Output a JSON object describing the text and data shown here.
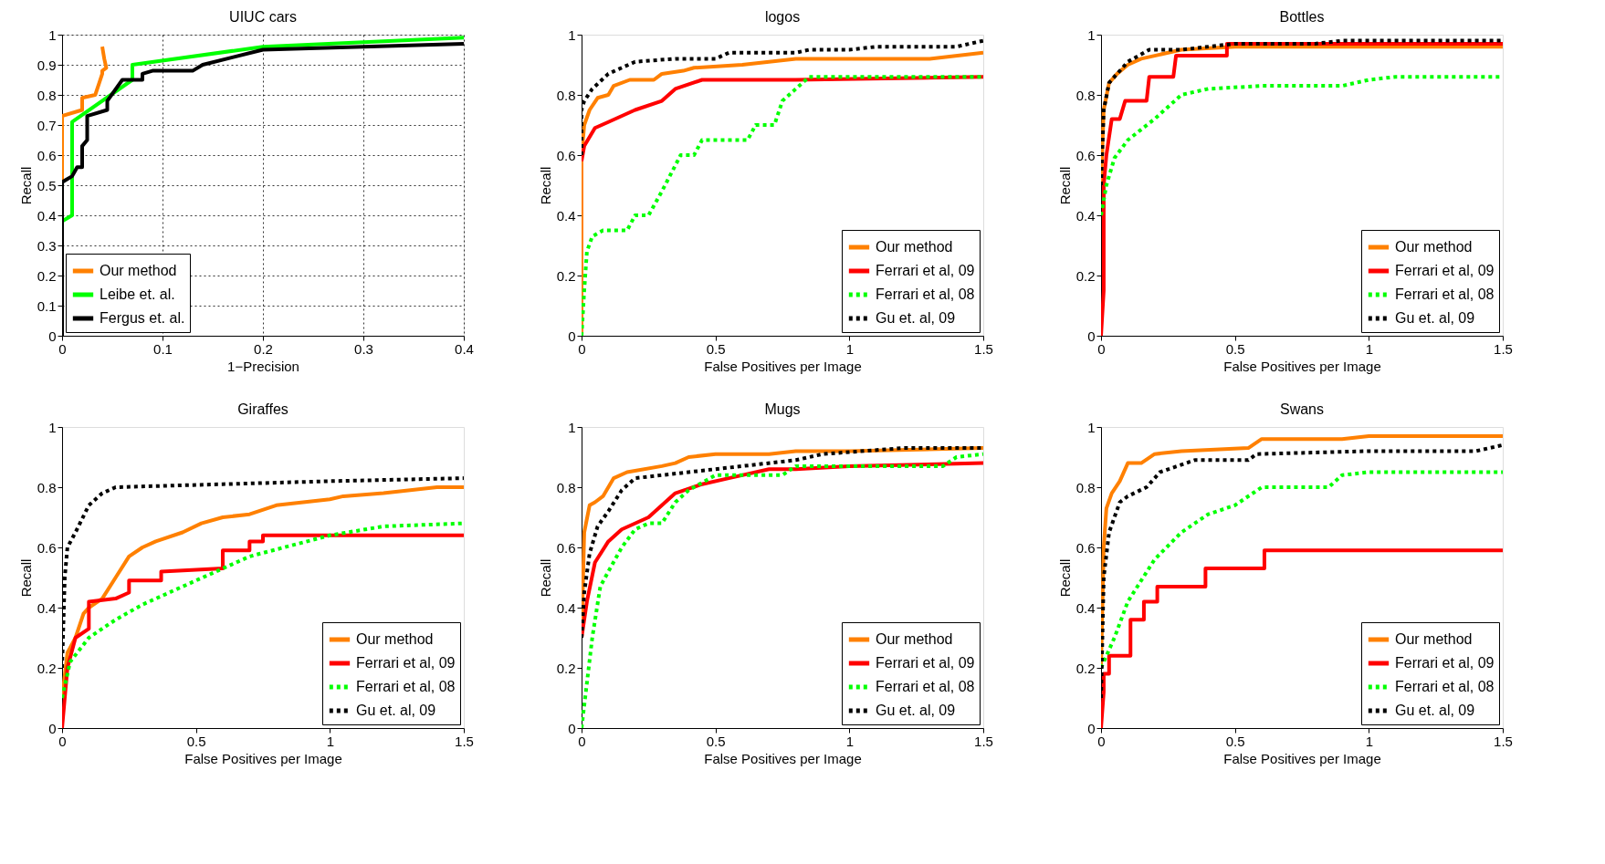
{
  "chart_data": [
    {
      "type": "line",
      "title": "UIUC cars",
      "xlabel": "1−Precision",
      "ylabel": "Recall",
      "xlim": [
        0,
        0.4
      ],
      "xticks": [
        0,
        0.1,
        0.2,
        0.3,
        0.4
      ],
      "ylim": [
        0,
        1
      ],
      "yticks": [
        0,
        0.1,
        0.2,
        0.3,
        0.4,
        0.5,
        0.6,
        0.7,
        0.8,
        0.9,
        1
      ],
      "grid": true,
      "legend": "bottom left",
      "marker": "none",
      "line_style": "solid",
      "series": [
        {
          "name": "Our method",
          "color": "#ff8000",
          "x": [
            0,
            0,
            0,
            0.02,
            0.02,
            0.033,
            0.037,
            0.04,
            0.04,
            0.044,
            0.042,
            0.04
          ],
          "values": [
            0,
            0.55,
            0.73,
            0.75,
            0.79,
            0.8,
            0.84,
            0.87,
            0.88,
            0.89,
            0.92,
            0.96
          ]
        },
        {
          "name": "Leibe et. al.",
          "color": "#00ff00",
          "x": [
            0,
            0,
            0.01,
            0.01,
            0.07,
            0.07,
            0.2,
            0.4
          ],
          "values": [
            0,
            0.38,
            0.4,
            0.71,
            0.85,
            0.9,
            0.96,
            0.99
          ]
        },
        {
          "name": "Fergus et. al.",
          "color": "#000000",
          "x": [
            0,
            0,
            0.01,
            0.015,
            0.02,
            0.02,
            0.025,
            0.025,
            0.045,
            0.045,
            0.06,
            0.08,
            0.08,
            0.09,
            0.13,
            0.14,
            0.2,
            0.4
          ],
          "values": [
            0,
            0.51,
            0.53,
            0.56,
            0.56,
            0.63,
            0.65,
            0.73,
            0.75,
            0.78,
            0.85,
            0.85,
            0.87,
            0.88,
            0.88,
            0.9,
            0.95,
            0.97
          ]
        }
      ]
    },
    {
      "type": "line",
      "title": "logos",
      "xlabel": "False Positives per Image",
      "ylabel": "Recall",
      "xlim": [
        0,
        1.5
      ],
      "xticks": [
        0,
        0.5,
        1,
        1.5
      ],
      "ylim": [
        0,
        1
      ],
      "yticks": [
        0,
        0.2,
        0.4,
        0.6,
        0.8,
        1
      ],
      "legend": "bottom right",
      "marker": "none",
      "series": [
        {
          "name": "Our method",
          "color": "#ff8000",
          "line_style": "solid",
          "x": [
            0,
            0,
            0.01,
            0.03,
            0.06,
            0.1,
            0.12,
            0.18,
            0.27,
            0.3,
            0.38,
            0.42,
            0.6,
            0.7,
            0.8,
            1.0,
            1.3,
            1.5
          ],
          "values": [
            0,
            0.6,
            0.7,
            0.75,
            0.79,
            0.8,
            0.83,
            0.85,
            0.85,
            0.87,
            0.88,
            0.89,
            0.9,
            0.91,
            0.92,
            0.92,
            0.92,
            0.94
          ]
        },
        {
          "name": "Ferrari et al, 09",
          "color": "#ff0000",
          "line_style": "solid",
          "x": [
            0,
            0.01,
            0.05,
            0.1,
            0.2,
            0.3,
            0.35,
            0.45,
            0.8,
            1.5
          ],
          "values": [
            0.58,
            0.63,
            0.69,
            0.71,
            0.75,
            0.78,
            0.82,
            0.85,
            0.85,
            0.86
          ]
        },
        {
          "name": "Ferrari et al, 08",
          "color": "#00ff00",
          "line_style": "dotted",
          "x": [
            0,
            0.01,
            0.02,
            0.04,
            0.08,
            0.17,
            0.2,
            0.25,
            0.3,
            0.37,
            0.42,
            0.45,
            0.5,
            0.62,
            0.65,
            0.72,
            0.75,
            0.8,
            0.85,
            1.5
          ],
          "values": [
            0,
            0.15,
            0.28,
            0.33,
            0.35,
            0.35,
            0.4,
            0.4,
            0.48,
            0.6,
            0.6,
            0.65,
            0.65,
            0.65,
            0.7,
            0.7,
            0.78,
            0.82,
            0.86,
            0.86
          ]
        },
        {
          "name": "Gu et. al, 09",
          "color": "#000000",
          "line_style": "dotted",
          "x": [
            0,
            0,
            0.01,
            0.04,
            0.1,
            0.2,
            0.35,
            0.5,
            0.55,
            0.8,
            0.85,
            1.0,
            1.1,
            1.4,
            1.5
          ],
          "values": [
            0.6,
            0.75,
            0.78,
            0.82,
            0.87,
            0.91,
            0.92,
            0.92,
            0.94,
            0.94,
            0.95,
            0.95,
            0.96,
            0.96,
            0.98
          ]
        }
      ]
    },
    {
      "type": "line",
      "title": "Bottles",
      "xlabel": "False Positives per Image",
      "ylabel": "Recall",
      "xlim": [
        0,
        1.5
      ],
      "xticks": [
        0,
        0.5,
        1,
        1.5
      ],
      "ylim": [
        0,
        1
      ],
      "yticks": [
        0,
        0.2,
        0.4,
        0.6,
        0.8,
        1
      ],
      "legend": "bottom right",
      "marker": "none",
      "series": [
        {
          "name": "Our method",
          "color": "#ff8000",
          "line_style": "solid",
          "x": [
            0,
            0.01,
            0.03,
            0.06,
            0.1,
            0.15,
            0.2,
            0.3,
            0.5,
            1.0,
            1.5
          ],
          "values": [
            0.5,
            0.75,
            0.84,
            0.87,
            0.9,
            0.92,
            0.93,
            0.95,
            0.96,
            0.96,
            0.96
          ]
        },
        {
          "name": "Ferrari et al, 09",
          "color": "#ff0000",
          "line_style": "solid",
          "x": [
            0,
            0.01,
            0.01,
            0.02,
            0.04,
            0.07,
            0.09,
            0.17,
            0.18,
            0.27,
            0.28,
            0.47,
            0.47,
            1.5
          ],
          "values": [
            0,
            0.15,
            0.5,
            0.6,
            0.72,
            0.72,
            0.78,
            0.78,
            0.86,
            0.86,
            0.93,
            0.93,
            0.97,
            0.97
          ]
        },
        {
          "name": "Ferrari et al, 08",
          "color": "#00ff00",
          "line_style": "dotted",
          "x": [
            0,
            0.02,
            0.05,
            0.1,
            0.2,
            0.3,
            0.4,
            0.6,
            0.9,
            1.0,
            1.1,
            1.5
          ],
          "values": [
            0.4,
            0.5,
            0.59,
            0.65,
            0.72,
            0.8,
            0.82,
            0.83,
            0.83,
            0.85,
            0.86,
            0.86
          ]
        },
        {
          "name": "Gu et. al, 09",
          "color": "#000000",
          "line_style": "dotted",
          "x": [
            0,
            0.01,
            0.03,
            0.06,
            0.1,
            0.18,
            0.3,
            0.5,
            0.8,
            0.9,
            1.5
          ],
          "values": [
            0.5,
            0.75,
            0.84,
            0.87,
            0.91,
            0.95,
            0.95,
            0.97,
            0.97,
            0.98,
            0.98
          ]
        }
      ]
    },
    {
      "type": "line",
      "title": "Giraffes",
      "xlabel": "False Positives per Image",
      "ylabel": "Recall",
      "xlim": [
        0,
        1.5
      ],
      "xticks": [
        0,
        0.5,
        1,
        1.5
      ],
      "ylim": [
        0,
        1
      ],
      "yticks": [
        0,
        0.2,
        0.4,
        0.6,
        0.8,
        1
      ],
      "legend": "bottom right",
      "marker": "none",
      "series": [
        {
          "name": "Our method",
          "color": "#ff8000",
          "line_style": "solid",
          "x": [
            0,
            0.02,
            0.05,
            0.08,
            0.1,
            0.15,
            0.2,
            0.25,
            0.3,
            0.35,
            0.45,
            0.52,
            0.6,
            0.7,
            0.8,
            0.9,
            1.0,
            1.05,
            1.2,
            1.4,
            1.5
          ],
          "values": [
            0.1,
            0.25,
            0.3,
            0.38,
            0.4,
            0.43,
            0.5,
            0.57,
            0.6,
            0.62,
            0.65,
            0.68,
            0.7,
            0.71,
            0.74,
            0.75,
            0.76,
            0.77,
            0.78,
            0.8,
            0.8
          ]
        },
        {
          "name": "Ferrari et al, 09",
          "color": "#ff0000",
          "line_style": "solid",
          "x": [
            0,
            0.01,
            0.02,
            0.05,
            0.1,
            0.1,
            0.2,
            0.25,
            0.25,
            0.37,
            0.37,
            0.6,
            0.6,
            0.7,
            0.7,
            0.75,
            0.75,
            1.5
          ],
          "values": [
            0,
            0.1,
            0.2,
            0.3,
            0.33,
            0.42,
            0.43,
            0.45,
            0.49,
            0.49,
            0.52,
            0.53,
            0.59,
            0.59,
            0.62,
            0.62,
            0.64,
            0.64
          ]
        },
        {
          "name": "Ferrari et al, 08",
          "color": "#00ff00",
          "line_style": "dotted",
          "x": [
            0,
            0.03,
            0.1,
            0.2,
            0.3,
            0.5,
            0.7,
            1.0,
            1.2,
            1.5
          ],
          "values": [
            0.1,
            0.22,
            0.3,
            0.36,
            0.41,
            0.49,
            0.57,
            0.64,
            0.67,
            0.68
          ]
        },
        {
          "name": "Gu et. al, 09",
          "color": "#000000",
          "line_style": "dotted",
          "x": [
            0,
            0.01,
            0.02,
            0.05,
            0.1,
            0.15,
            0.2,
            0.6,
            1.0,
            1.5
          ],
          "values": [
            0.2,
            0.5,
            0.6,
            0.65,
            0.74,
            0.78,
            0.8,
            0.81,
            0.82,
            0.83
          ]
        }
      ]
    },
    {
      "type": "line",
      "title": "Mugs",
      "xlabel": "False Positives per Image",
      "ylabel": "Recall",
      "xlim": [
        0,
        1.5
      ],
      "xticks": [
        0,
        0.5,
        1,
        1.5
      ],
      "ylim": [
        0,
        1
      ],
      "yticks": [
        0,
        0.2,
        0.4,
        0.6,
        0.8,
        1
      ],
      "legend": "bottom right",
      "marker": "none",
      "series": [
        {
          "name": "Our method",
          "color": "#ff8000",
          "line_style": "solid",
          "x": [
            0,
            0.01,
            0.03,
            0.05,
            0.08,
            0.12,
            0.17,
            0.3,
            0.35,
            0.4,
            0.5,
            0.7,
            0.8,
            1.0,
            1.5
          ],
          "values": [
            0.3,
            0.65,
            0.74,
            0.75,
            0.77,
            0.83,
            0.85,
            0.87,
            0.88,
            0.9,
            0.91,
            0.91,
            0.92,
            0.92,
            0.93
          ]
        },
        {
          "name": "Ferrari et al, 09",
          "color": "#ff0000",
          "line_style": "solid",
          "x": [
            0,
            0.02,
            0.05,
            0.1,
            0.15,
            0.25,
            0.35,
            0.45,
            0.55,
            0.7,
            0.8,
            1.0,
            1.5
          ],
          "values": [
            0.3,
            0.42,
            0.55,
            0.62,
            0.66,
            0.7,
            0.78,
            0.81,
            0.83,
            0.86,
            0.86,
            0.87,
            0.88
          ]
        },
        {
          "name": "Ferrari et al, 08",
          "color": "#00ff00",
          "line_style": "dotted",
          "x": [
            0,
            0.02,
            0.04,
            0.07,
            0.1,
            0.15,
            0.2,
            0.25,
            0.3,
            0.35,
            0.4,
            0.5,
            0.6,
            0.75,
            0.8,
            1.0,
            1.35,
            1.4,
            1.5
          ],
          "values": [
            0,
            0.15,
            0.3,
            0.47,
            0.52,
            0.6,
            0.66,
            0.68,
            0.68,
            0.75,
            0.79,
            0.84,
            0.84,
            0.84,
            0.87,
            0.87,
            0.87,
            0.9,
            0.91
          ]
        },
        {
          "name": "Gu et. al, 09",
          "color": "#000000",
          "line_style": "dotted",
          "x": [
            0,
            0.01,
            0.03,
            0.06,
            0.1,
            0.15,
            0.2,
            0.3,
            0.4,
            0.6,
            0.8,
            0.9,
            1.2,
            1.5
          ],
          "values": [
            0.3,
            0.45,
            0.58,
            0.67,
            0.72,
            0.79,
            0.83,
            0.84,
            0.85,
            0.87,
            0.89,
            0.91,
            0.93,
            0.93
          ]
        }
      ]
    },
    {
      "type": "line",
      "title": "Swans",
      "xlabel": "False Positives per Image",
      "ylabel": "Recall",
      "xlim": [
        0,
        1.5
      ],
      "xticks": [
        0,
        0.5,
        1,
        1.5
      ],
      "ylim": [
        0,
        1
      ],
      "yticks": [
        0,
        0.2,
        0.4,
        0.6,
        0.8,
        1
      ],
      "legend": "bottom right",
      "marker": "none",
      "series": [
        {
          "name": "Our method",
          "color": "#ff8000",
          "line_style": "solid",
          "x": [
            0,
            0.01,
            0.02,
            0.04,
            0.07,
            0.1,
            0.15,
            0.2,
            0.3,
            0.55,
            0.6,
            0.9,
            1.0,
            1.5
          ],
          "values": [
            0.2,
            0.6,
            0.73,
            0.78,
            0.82,
            0.88,
            0.88,
            0.91,
            0.92,
            0.93,
            0.96,
            0.96,
            0.97,
            0.97
          ]
        },
        {
          "name": "Ferrari et al, 09",
          "color": "#ff0000",
          "line_style": "solid",
          "x": [
            0,
            0.01,
            0.01,
            0.03,
            0.03,
            0.11,
            0.11,
            0.16,
            0.16,
            0.21,
            0.21,
            0.39,
            0.39,
            0.61,
            0.61,
            1.5
          ],
          "values": [
            0,
            0.12,
            0.18,
            0.18,
            0.24,
            0.24,
            0.36,
            0.36,
            0.42,
            0.42,
            0.47,
            0.47,
            0.53,
            0.53,
            0.59,
            0.59
          ]
        },
        {
          "name": "Ferrari et al, 08",
          "color": "#00ff00",
          "line_style": "dotted",
          "x": [
            0,
            0.05,
            0.1,
            0.2,
            0.3,
            0.4,
            0.5,
            0.6,
            0.85,
            0.9,
            1.0,
            1.5
          ],
          "values": [
            0.2,
            0.3,
            0.42,
            0.56,
            0.65,
            0.71,
            0.74,
            0.8,
            0.8,
            0.84,
            0.85,
            0.85
          ]
        },
        {
          "name": "Gu et. al, 09",
          "color": "#000000",
          "line_style": "dotted",
          "x": [
            0,
            0.01,
            0.03,
            0.07,
            0.1,
            0.17,
            0.22,
            0.35,
            0.55,
            0.58,
            1.0,
            1.4,
            1.5
          ],
          "values": [
            0.1,
            0.5,
            0.65,
            0.75,
            0.77,
            0.8,
            0.85,
            0.89,
            0.89,
            0.91,
            0.92,
            0.92,
            0.94
          ]
        }
      ]
    }
  ]
}
